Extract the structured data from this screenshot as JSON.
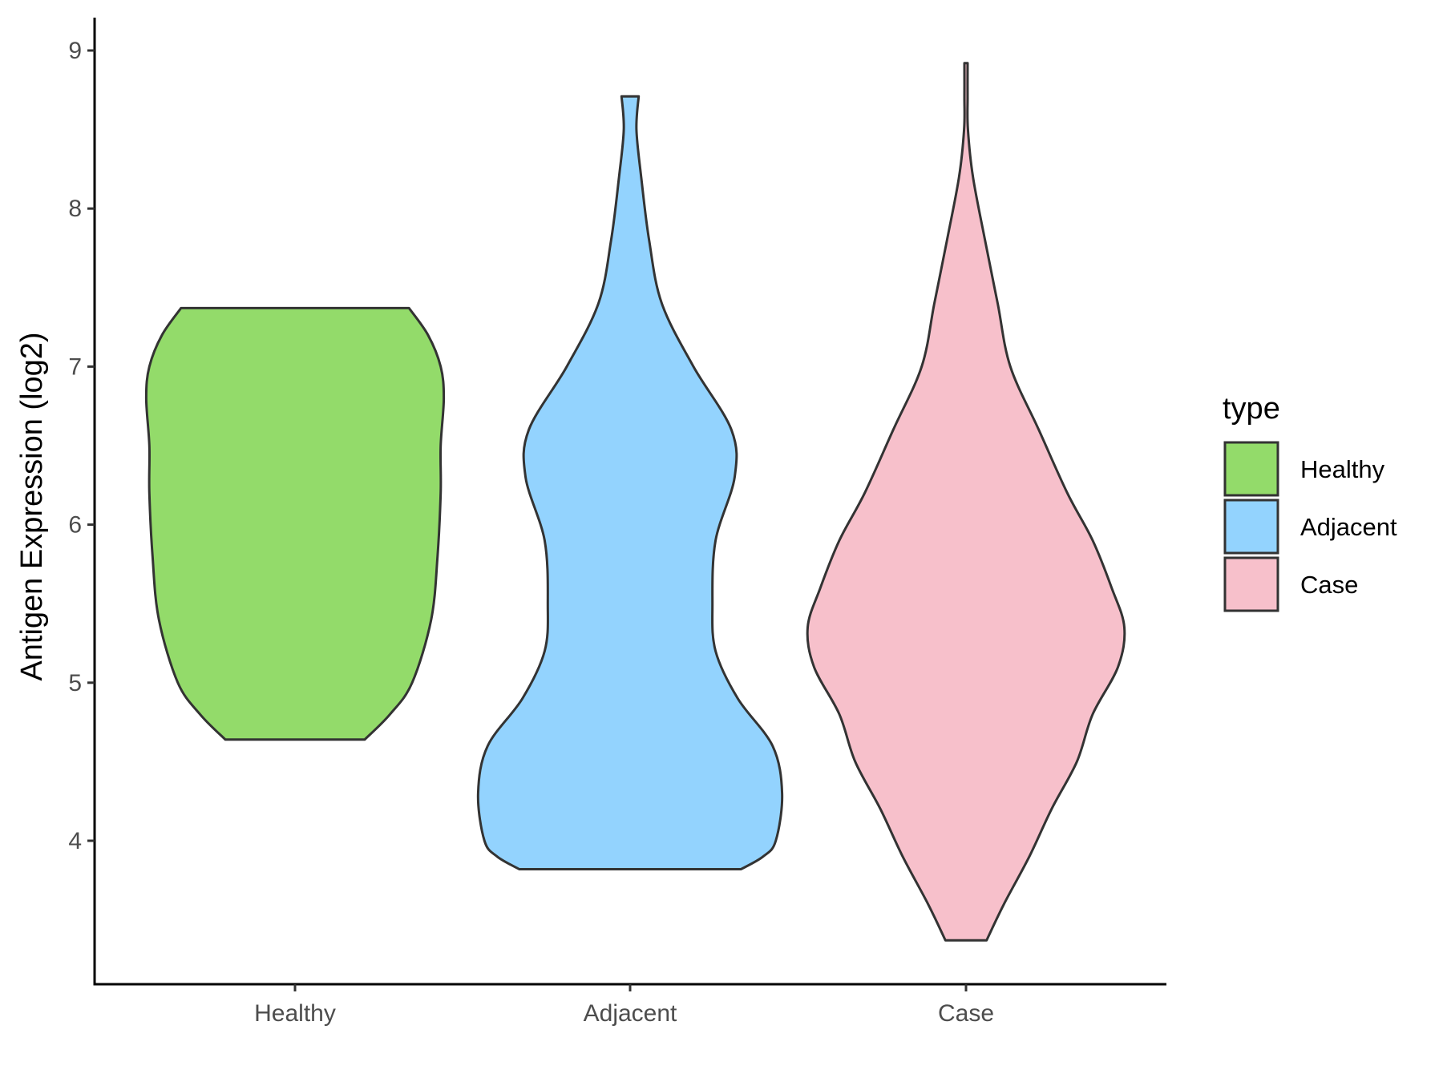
{
  "chart_data": {
    "type": "violin",
    "title": "",
    "xlabel": "",
    "ylabel": "Antigen Expression (log2)",
    "categories": [
      "Healthy",
      "Adjacent",
      "Case"
    ],
    "yticks": [
      "4",
      "5",
      "6",
      "7",
      "8",
      "9"
    ],
    "ylim": [
      3.1,
      9.2
    ],
    "grid": false,
    "legend": {
      "title": "type",
      "position": "right",
      "entries": [
        "Healthy",
        "Adjacent",
        "Case"
      ]
    },
    "series": [
      {
        "category": "Healthy",
        "color": "#93DB6A",
        "min": 4.64,
        "max": 7.37,
        "density_profile": [
          [
            4.64,
            0.22
          ],
          [
            4.8,
            0.3
          ],
          [
            5.0,
            0.37
          ],
          [
            5.4,
            0.43
          ],
          [
            5.8,
            0.45
          ],
          [
            6.2,
            0.46
          ],
          [
            6.5,
            0.46
          ],
          [
            6.8,
            0.47
          ],
          [
            7.0,
            0.46
          ],
          [
            7.2,
            0.42
          ],
          [
            7.37,
            0.36
          ]
        ]
      },
      {
        "category": "Adjacent",
        "color": "#93D3FE",
        "min": 3.82,
        "max": 8.71,
        "density_profile": [
          [
            3.82,
            0.35
          ],
          [
            3.9,
            0.42
          ],
          [
            4.0,
            0.46
          ],
          [
            4.3,
            0.48
          ],
          [
            4.6,
            0.45
          ],
          [
            4.9,
            0.34
          ],
          [
            5.2,
            0.27
          ],
          [
            5.5,
            0.26
          ],
          [
            5.9,
            0.27
          ],
          [
            6.3,
            0.33
          ],
          [
            6.6,
            0.32
          ],
          [
            7.0,
            0.2
          ],
          [
            7.4,
            0.1
          ],
          [
            7.8,
            0.06
          ],
          [
            8.2,
            0.035
          ],
          [
            8.5,
            0.02
          ],
          [
            8.71,
            0.027
          ]
        ]
      },
      {
        "category": "Case",
        "color": "#F7C0CB",
        "min": 3.37,
        "max": 8.92,
        "density_profile": [
          [
            3.37,
            0.065
          ],
          [
            3.6,
            0.12
          ],
          [
            3.9,
            0.2
          ],
          [
            4.2,
            0.27
          ],
          [
            4.5,
            0.35
          ],
          [
            4.8,
            0.4
          ],
          [
            5.1,
            0.48
          ],
          [
            5.35,
            0.5
          ],
          [
            5.6,
            0.46
          ],
          [
            5.9,
            0.4
          ],
          [
            6.2,
            0.32
          ],
          [
            6.6,
            0.23
          ],
          [
            7.0,
            0.14
          ],
          [
            7.4,
            0.1
          ],
          [
            7.8,
            0.06
          ],
          [
            8.2,
            0.022
          ],
          [
            8.5,
            0.006
          ],
          [
            8.7,
            0.005
          ],
          [
            8.92,
            0.005
          ]
        ]
      }
    ]
  }
}
